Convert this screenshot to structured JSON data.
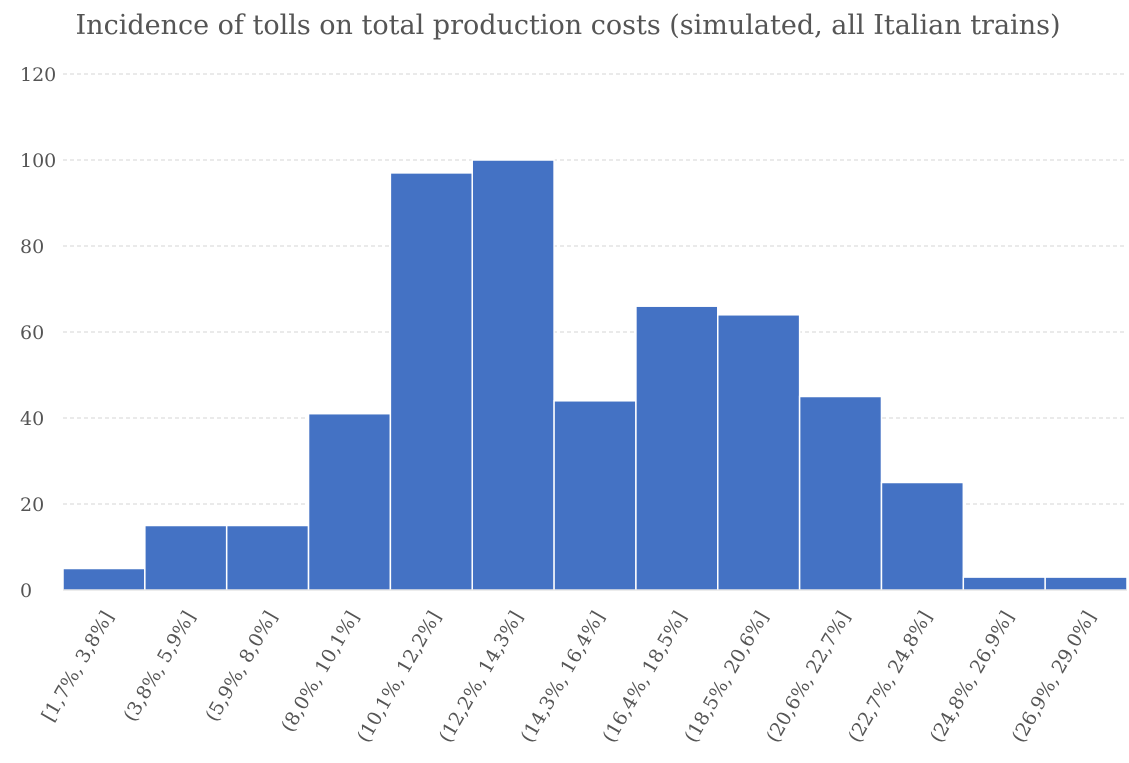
{
  "chart_data": {
    "type": "bar",
    "title": "Incidence of tolls on total production costs (simulated, all Italian trains)",
    "xlabel": "",
    "ylabel": "",
    "categories": [
      "[1,7%, 3,8%]",
      "(3,8%, 5,9%]",
      "(5,9%, 8,0%]",
      "(8,0%, 10,1%]",
      "(10,1%, 12,2%]",
      "(12,2%, 14,3%]",
      "(14,3%, 16,4%]",
      "(16,4%, 18,5%]",
      "(18,5%, 20,6%]",
      "(20,6%, 22,7%]",
      "(22,7%, 24,8%]",
      "(24,8%, 26,9%]",
      "(26,9%, 29,0%]"
    ],
    "values": [
      5,
      15,
      15,
      41,
      97,
      100,
      44,
      66,
      64,
      45,
      25,
      3,
      3
    ],
    "ylim": [
      0,
      120
    ],
    "yticks": [
      0,
      20,
      40,
      60,
      80,
      100,
      120
    ],
    "grid": true,
    "legend": "none",
    "bar_color": "#4472C4"
  }
}
